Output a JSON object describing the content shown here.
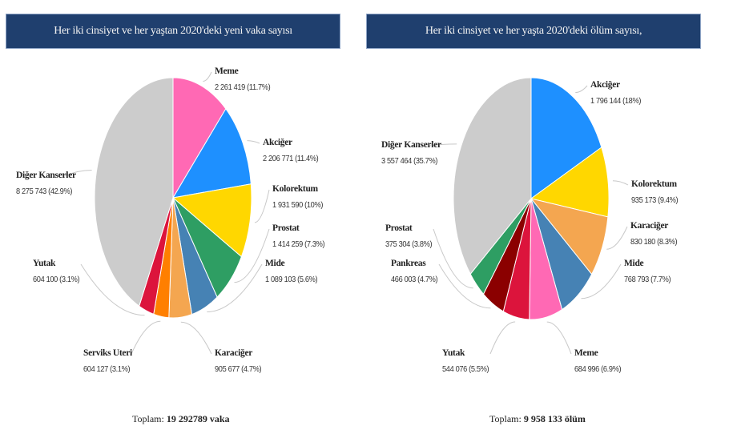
{
  "chart_data": [
    {
      "type": "pie",
      "title": "Her iki cinsiyet ve her yaştan 2020'deki yeni vaka sayısı",
      "total_label": "Toplam:",
      "total_value": "19 292789 vaka",
      "slices": [
        {
          "name": "Meme",
          "value": 2261419,
          "label": "2 261 419 (11.7%)",
          "percent": 11.7,
          "color": "#ff69b4"
        },
        {
          "name": "Akciğer",
          "value": 2206771,
          "label": "2 206 771 (11.4%)",
          "percent": 11.4,
          "color": "#1e90ff"
        },
        {
          "name": "Kolorektum",
          "value": 1931590,
          "label": "1 931 590 (10%)",
          "percent": 10,
          "color": "#ffd700"
        },
        {
          "name": "Prostat",
          "value": 1414259,
          "label": "1 414 259 (7.3%)",
          "percent": 7.3,
          "color": "#2e9e63"
        },
        {
          "name": "Mide",
          "value": 1089103,
          "label": "1 089 103 (5.6%)",
          "percent": 5.6,
          "color": "#4682b4"
        },
        {
          "name": "Karaciğer",
          "value": 905677,
          "label": "905 677 (4.7%)",
          "percent": 4.7,
          "color": "#f4a650"
        },
        {
          "name": "Serviks Uteri",
          "value": 604127,
          "label": "604 127 (3.1%)",
          "percent": 3.1,
          "color": "#ff7f00"
        },
        {
          "name": "Yutak",
          "value": 604100,
          "label": "604 100 (3.1%)",
          "percent": 3.1,
          "color": "#dc143c"
        },
        {
          "name": "Diğer Kanserler",
          "value": 8275743,
          "label": "8 275 743 (42.9%)",
          "percent": 42.9,
          "color": "#cccccc"
        }
      ]
    },
    {
      "type": "pie",
      "title": "Her iki cinsiyet ve her yaşta 2020'deki ölüm sayısı,",
      "total_label": "Toplam:",
      "total_value": "9 958 133 ölüm",
      "slices": [
        {
          "name": "Akciğer",
          "value": 1796144,
          "label": "1 796 144 (18%)",
          "percent": 18,
          "color": "#1e90ff"
        },
        {
          "name": "Kolorektum",
          "value": 935173,
          "label": "935 173 (9.4%)",
          "percent": 9.4,
          "color": "#ffd700"
        },
        {
          "name": "Karaciğer",
          "value": 830180,
          "label": "830 180 (8.3%)",
          "percent": 8.3,
          "color": "#f4a650"
        },
        {
          "name": "Mide",
          "value": 768793,
          "label": "768 793 (7.7%)",
          "percent": 7.7,
          "color": "#4682b4"
        },
        {
          "name": "Meme",
          "value": 684996,
          "label": "684 996 (6.9%)",
          "percent": 6.9,
          "color": "#ff69b4"
        },
        {
          "name": "Yutak",
          "value": 544076,
          "label": "544 076 (5.5%)",
          "percent": 5.5,
          "color": "#dc143c"
        },
        {
          "name": "Pankreas",
          "value": 466003,
          "label": "466 003 (4.7%)",
          "percent": 4.7,
          "color": "#8b0000"
        },
        {
          "name": "Prostat",
          "value": 375304,
          "label": "375 304 (3.8%)",
          "percent": 3.8,
          "color": "#2e9e63"
        },
        {
          "name": "Diğer Kanserler",
          "value": 3557464,
          "label": "3 557 464 (35.7%)",
          "percent": 35.7,
          "color": "#cccccc"
        }
      ]
    }
  ]
}
